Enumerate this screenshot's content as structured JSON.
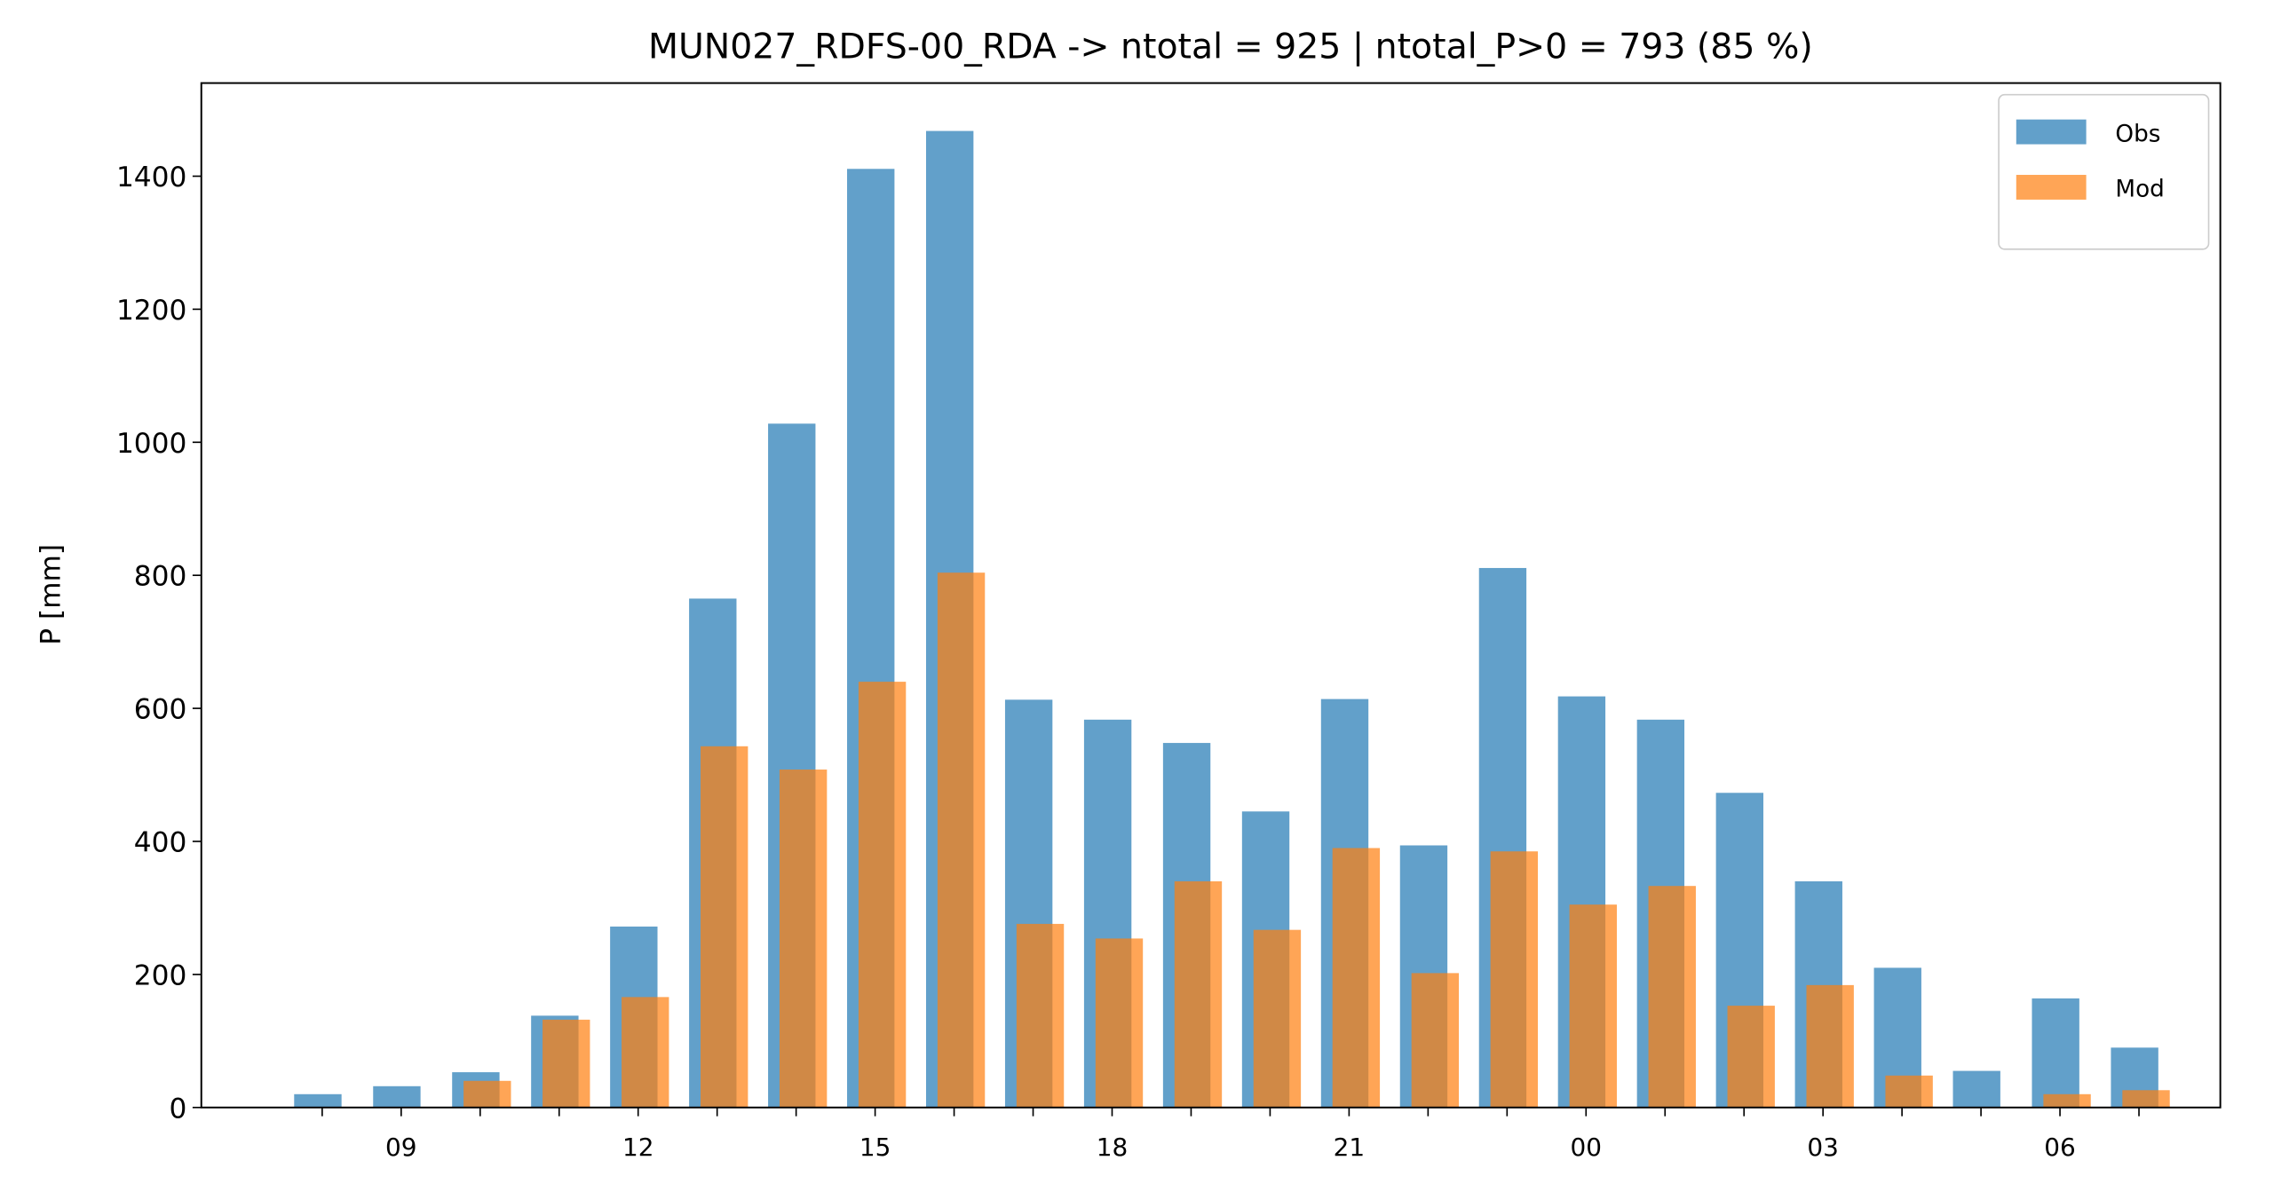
{
  "chart_data": {
    "type": "bar",
    "title": "MUN027_RDFS-00_RDA -> ntotal = 925 | ntotal_P>0 = 793 (85 %)",
    "y_label": "P [mm]",
    "categories": [
      null,
      "09",
      null,
      null,
      "12",
      null,
      null,
      "15",
      null,
      null,
      "18",
      null,
      null,
      "21",
      null,
      null,
      "00",
      null,
      null,
      "03",
      null,
      null,
      "06",
      null
    ],
    "series": [
      {
        "name": "Obs",
        "color": "#1f77b4",
        "values": [
          20,
          32,
          53,
          138,
          272,
          765,
          1028,
          1411,
          1468,
          613,
          583,
          548,
          445,
          614,
          394,
          811,
          618,
          583,
          473,
          340,
          210,
          55,
          164,
          90
        ]
      },
      {
        "name": "Mod",
        "color": "#ff7f0e",
        "values": [
          0,
          0,
          40,
          132,
          166,
          543,
          508,
          640,
          804,
          276,
          254,
          340,
          267,
          390,
          202,
          385,
          305,
          333,
          153,
          184,
          48,
          0,
          20,
          26
        ]
      }
    ],
    "ylim": [
      0,
      1540
    ],
    "yticks": [
      0,
      200,
      400,
      600,
      800,
      1000,
      1200,
      1400
    ],
    "legend": "upper right"
  }
}
